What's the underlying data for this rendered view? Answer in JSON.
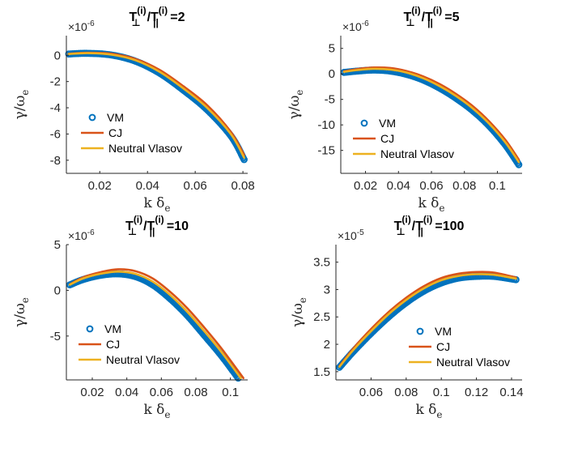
{
  "figure": {
    "background": "#ffffff",
    "axis_color": "#262626",
    "series_styles": [
      {
        "name": "VM",
        "color": "#0072BD",
        "marker": "circle"
      },
      {
        "name": "CJ",
        "color": "#D95319",
        "marker": "line"
      },
      {
        "name": "Neutral Vlasov",
        "color": "#EDB120",
        "marker": "line"
      }
    ]
  },
  "chart_data": [
    {
      "type": "line",
      "title": {
        "main": "T",
        "sub1": "⊥",
        "sup1": "(i)",
        "mid": "/T",
        "sub2": "||",
        "sup2": "(i)",
        "tail": " =2"
      },
      "multiplier": {
        "base": "×10",
        "exp": "-6"
      },
      "xlabel": {
        "main": "k δ",
        "sub": "e"
      },
      "ylabel": {
        "main": "γ/ω",
        "sub": "e"
      },
      "xlim": [
        0.006,
        0.082
      ],
      "ylim": [
        -9,
        1.5
      ],
      "xticks": [
        0.02,
        0.04,
        0.06,
        0.08
      ],
      "xtick_labels": [
        "0.02",
        "0.04",
        "0.06",
        "0.08"
      ],
      "yticks": [
        0,
        -2,
        -4,
        -6,
        -8
      ],
      "ytick_labels": [
        "0",
        "-2",
        "-4",
        "-6",
        "-8"
      ],
      "legend": [
        "VM",
        "CJ",
        "Neutral Vlasov"
      ],
      "legend_position": "middle-left",
      "series": [
        {
          "name": "VM",
          "x": [
            0.007,
            0.015,
            0.025,
            0.035,
            0.045,
            0.055,
            0.065,
            0.075,
            0.0805
          ],
          "values": [
            0.1,
            0.15,
            0.02,
            -0.45,
            -1.35,
            -2.65,
            -4.15,
            -6.15,
            -7.95
          ]
        },
        {
          "name": "CJ",
          "x": [
            0.007,
            0.015,
            0.025,
            0.035,
            0.045,
            0.055,
            0.065,
            0.075,
            0.0805
          ],
          "values": [
            0.12,
            0.2,
            0.12,
            -0.28,
            -1.1,
            -2.35,
            -3.8,
            -5.85,
            -7.6
          ]
        },
        {
          "name": "Neutral Vlasov",
          "x": [
            0.007,
            0.015,
            0.025,
            0.035,
            0.045,
            0.055,
            0.065,
            0.075,
            0.0805
          ],
          "values": [
            0.1,
            0.17,
            0.05,
            -0.38,
            -1.25,
            -2.52,
            -4.0,
            -6.02,
            -7.8
          ]
        }
      ]
    },
    {
      "type": "line",
      "title": {
        "main": "T",
        "sub1": "⊥",
        "sup1": "(i)",
        "mid": "/T",
        "sub2": "||",
        "sup2": "(i)",
        "tail": " =5"
      },
      "multiplier": {
        "base": "×10",
        "exp": "-6"
      },
      "xlabel": {
        "main": "k δ",
        "sub": "e"
      },
      "ylabel": {
        "main": "γ/ω",
        "sub": "e"
      },
      "xlim": [
        0.005,
        0.115
      ],
      "ylim": [
        -19.5,
        7.5
      ],
      "xticks": [
        0.02,
        0.04,
        0.06,
        0.08,
        0.1
      ],
      "xtick_labels": [
        "0.02",
        "0.04",
        "0.06",
        "0.08",
        "0.1"
      ],
      "yticks": [
        5,
        0,
        -5,
        -10,
        -15
      ],
      "ytick_labels": [
        "5",
        "0",
        "-5",
        "-10",
        "-15"
      ],
      "legend": [
        "VM",
        "CJ",
        "Neutral Vlasov"
      ],
      "legend_position": "middle-left",
      "series": [
        {
          "name": "VM",
          "x": [
            0.007,
            0.015,
            0.025,
            0.035,
            0.045,
            0.055,
            0.065,
            0.075,
            0.085,
            0.095,
            0.105,
            0.113
          ],
          "values": [
            0.3,
            0.55,
            0.75,
            0.55,
            -0.1,
            -1.2,
            -2.8,
            -4.8,
            -7.2,
            -10.2,
            -14.0,
            -17.8
          ]
        },
        {
          "name": "CJ",
          "x": [
            0.007,
            0.015,
            0.025,
            0.035,
            0.045,
            0.055,
            0.065,
            0.075,
            0.085,
            0.095,
            0.105,
            0.113
          ],
          "values": [
            0.5,
            0.95,
            1.25,
            1.15,
            0.55,
            -0.5,
            -2.0,
            -3.95,
            -6.3,
            -9.3,
            -13.0,
            -16.8
          ]
        },
        {
          "name": "Neutral Vlasov",
          "x": [
            0.007,
            0.015,
            0.025,
            0.035,
            0.045,
            0.055,
            0.065,
            0.075,
            0.085,
            0.095,
            0.105,
            0.113
          ],
          "values": [
            0.4,
            0.75,
            1.0,
            0.85,
            0.25,
            -0.85,
            -2.4,
            -4.35,
            -6.75,
            -9.75,
            -13.5,
            -17.3
          ]
        }
      ]
    },
    {
      "type": "line",
      "title": {
        "main": "T",
        "sub1": "⊥",
        "sup1": "(i)",
        "mid": "/T",
        "sub2": "||",
        "sup2": "(i)",
        "tail": " =10"
      },
      "multiplier": {
        "base": "×10",
        "exp": "-6"
      },
      "xlabel": {
        "main": "k δ",
        "sub": "e"
      },
      "ylabel": {
        "main": "γ/ω",
        "sub": "e"
      },
      "xlim": [
        0.005,
        0.11
      ],
      "ylim": [
        -9.8,
        5
      ],
      "xticks": [
        0.02,
        0.04,
        0.06,
        0.08,
        0.1
      ],
      "xtick_labels": [
        "0.02",
        "0.04",
        "0.06",
        "0.08",
        "0.1"
      ],
      "yticks": [
        5,
        0,
        -5
      ],
      "ytick_labels": [
        "5",
        "0",
        "-5"
      ],
      "legend": [
        "VM",
        "CJ",
        "Neutral Vlasov"
      ],
      "legend_position": "bottom-left",
      "series": [
        {
          "name": "VM",
          "x": [
            0.007,
            0.015,
            0.025,
            0.035,
            0.045,
            0.055,
            0.065,
            0.075,
            0.085,
            0.095,
            0.1045
          ],
          "values": [
            0.6,
            1.2,
            1.65,
            1.8,
            1.5,
            0.6,
            -0.9,
            -2.75,
            -4.95,
            -7.2,
            -9.6
          ]
        },
        {
          "name": "CJ",
          "x": [
            0.007,
            0.015,
            0.025,
            0.035,
            0.045,
            0.055,
            0.065,
            0.075,
            0.085,
            0.095,
            0.1075
          ],
          "values": [
            0.65,
            1.45,
            2.0,
            2.3,
            2.1,
            1.3,
            -0.15,
            -1.95,
            -4.1,
            -6.4,
            -9.6
          ]
        },
        {
          "name": "Neutral Vlasov",
          "x": [
            0.007,
            0.015,
            0.025,
            0.035,
            0.045,
            0.055,
            0.065,
            0.075,
            0.085,
            0.095,
            0.106
          ],
          "values": [
            0.62,
            1.32,
            1.82,
            2.05,
            1.8,
            0.95,
            -0.5,
            -2.35,
            -4.5,
            -6.8,
            -9.6
          ]
        }
      ]
    },
    {
      "type": "line",
      "title": {
        "main": "T",
        "sub1": "⊥",
        "sup1": "(i)",
        "mid": "/T",
        "sub2": "||",
        "sup2": "(i)",
        "tail": " =100"
      },
      "multiplier": {
        "base": "×10",
        "exp": "-5"
      },
      "xlabel": {
        "main": "k δ",
        "sub": "e"
      },
      "ylabel": {
        "main": "γ/ω",
        "sub": "e"
      },
      "xlim": [
        0.04,
        0.146
      ],
      "ylim": [
        1.35,
        3.82
      ],
      "xticks": [
        0.06,
        0.08,
        0.1,
        0.12,
        0.14
      ],
      "xtick_labels": [
        "0.06",
        "0.08",
        "0.1",
        "0.12",
        "0.14"
      ],
      "yticks": [
        3.5,
        3,
        2.5,
        2,
        1.5
      ],
      "ytick_labels": [
        "3.5",
        "3",
        "2.5",
        "2",
        "1.5"
      ],
      "legend": [
        "VM",
        "CJ",
        "Neutral Vlasov"
      ],
      "legend_position": "bottom-center",
      "series": [
        {
          "name": "VM",
          "x": [
            0.042,
            0.05,
            0.06,
            0.07,
            0.08,
            0.09,
            0.1,
            0.11,
            0.12,
            0.13,
            0.1425
          ],
          "values": [
            1.58,
            1.87,
            2.2,
            2.5,
            2.76,
            2.97,
            3.12,
            3.21,
            3.24,
            3.24,
            3.18
          ]
        },
        {
          "name": "CJ",
          "x": [
            0.042,
            0.05,
            0.06,
            0.07,
            0.08,
            0.09,
            0.1,
            0.11,
            0.12,
            0.13,
            0.1425
          ],
          "values": [
            1.6,
            1.93,
            2.28,
            2.59,
            2.85,
            3.06,
            3.21,
            3.29,
            3.32,
            3.31,
            3.22
          ]
        },
        {
          "name": "Neutral Vlasov",
          "x": [
            0.042,
            0.05,
            0.06,
            0.07,
            0.08,
            0.09,
            0.1,
            0.11,
            0.12,
            0.13,
            0.1425
          ],
          "values": [
            1.59,
            1.9,
            2.24,
            2.55,
            2.81,
            3.02,
            3.17,
            3.25,
            3.28,
            3.27,
            3.2
          ]
        }
      ]
    }
  ]
}
